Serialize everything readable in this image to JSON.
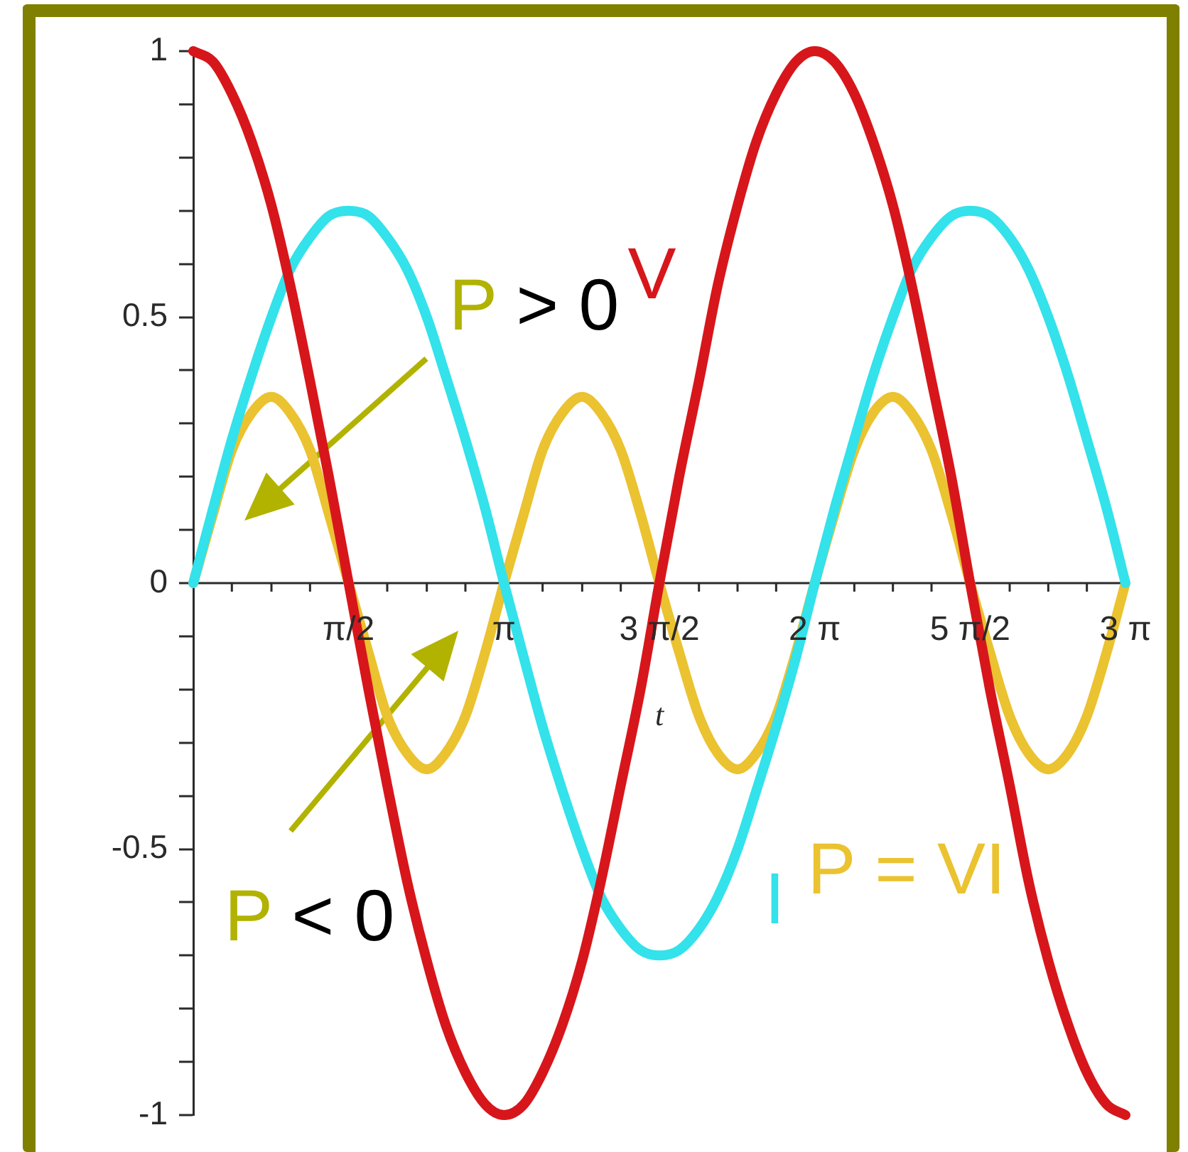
{
  "chart_data": {
    "type": "line",
    "xlabel": "t",
    "x": [
      0,
      0.2,
      0.39,
      0.59,
      0.79,
      0.98,
      1.18,
      1.37,
      1.57,
      1.77,
      1.96,
      2.16,
      2.36,
      2.55,
      2.75,
      2.95,
      3.14,
      3.34,
      3.53,
      3.73,
      3.93,
      4.12,
      4.32,
      4.52,
      4.71,
      4.91,
      5.11,
      5.3,
      5.5,
      5.69,
      5.89,
      6.09,
      6.28,
      6.48,
      6.68,
      6.87,
      7.07,
      7.26,
      7.46,
      7.66,
      7.85,
      8.05,
      8.25,
      8.44,
      8.64,
      8.84,
      9.03,
      9.23,
      9.42
    ],
    "series": [
      {
        "name": "V",
        "color": "#d7161b",
        "values": [
          1,
          0.98,
          0.92,
          0.83,
          0.71,
          0.56,
          0.38,
          0.2,
          0,
          -0.2,
          -0.38,
          -0.56,
          -0.71,
          -0.83,
          -0.92,
          -0.98,
          -1,
          -0.98,
          -0.92,
          -0.83,
          -0.71,
          -0.56,
          -0.38,
          -0.2,
          0,
          0.2,
          0.38,
          0.56,
          0.71,
          0.83,
          0.92,
          0.98,
          1,
          0.98,
          0.92,
          0.83,
          0.71,
          0.56,
          0.38,
          0.2,
          0,
          -0.2,
          -0.38,
          -0.56,
          -0.71,
          -0.83,
          -0.92,
          -0.98,
          -1
        ]
      },
      {
        "name": "I",
        "color": "#33e2ea",
        "values": [
          0,
          0.14,
          0.27,
          0.39,
          0.5,
          0.59,
          0.65,
          0.69,
          0.7,
          0.69,
          0.65,
          0.59,
          0.5,
          0.39,
          0.27,
          0.14,
          0,
          -0.14,
          -0.27,
          -0.39,
          -0.5,
          -0.59,
          -0.65,
          -0.69,
          -0.7,
          -0.69,
          -0.65,
          -0.59,
          -0.5,
          -0.39,
          -0.27,
          -0.14,
          0,
          0.14,
          0.27,
          0.39,
          0.5,
          0.59,
          0.65,
          0.69,
          0.7,
          0.69,
          0.65,
          0.59,
          0.5,
          0.39,
          0.27,
          0.14,
          0
        ]
      },
      {
        "name": "P = VI",
        "color": "#ebc230",
        "values": [
          0,
          0.13,
          0.25,
          0.32,
          0.35,
          0.32,
          0.25,
          0.13,
          0,
          -0.13,
          -0.25,
          -0.32,
          -0.35,
          -0.32,
          -0.25,
          -0.13,
          0,
          0.13,
          0.25,
          0.32,
          0.35,
          0.32,
          0.25,
          0.13,
          0,
          -0.13,
          -0.25,
          -0.32,
          -0.35,
          -0.32,
          -0.25,
          -0.13,
          0,
          0.13,
          0.25,
          0.32,
          0.35,
          0.32,
          0.25,
          0.13,
          0,
          -0.13,
          -0.25,
          -0.32,
          -0.35,
          -0.32,
          -0.25,
          -0.13,
          0
        ]
      }
    ],
    "xlim": [
      0,
      9.42
    ],
    "xticks": [
      {
        "value": 0.39,
        "label": null
      },
      {
        "value": 0.79,
        "label": null
      },
      {
        "value": 1.18,
        "label": null
      },
      {
        "value": 1.57,
        "label": "π/2"
      },
      {
        "value": 1.96,
        "label": null
      },
      {
        "value": 2.36,
        "label": null
      },
      {
        "value": 2.75,
        "label": null
      },
      {
        "value": 3.14,
        "label": "π"
      },
      {
        "value": 3.53,
        "label": null
      },
      {
        "value": 3.93,
        "label": null
      },
      {
        "value": 4.32,
        "label": null
      },
      {
        "value": 4.71,
        "label": "3 π/2"
      },
      {
        "value": 5.11,
        "label": null
      },
      {
        "value": 5.5,
        "label": null
      },
      {
        "value": 5.89,
        "label": null
      },
      {
        "value": 6.28,
        "label": "2 π"
      },
      {
        "value": 6.68,
        "label": null
      },
      {
        "value": 7.07,
        "label": null
      },
      {
        "value": 7.46,
        "label": null
      },
      {
        "value": 7.85,
        "label": "5 π/2"
      },
      {
        "value": 8.25,
        "label": null
      },
      {
        "value": 8.64,
        "label": null
      },
      {
        "value": 9.03,
        "label": null
      },
      {
        "value": 9.42,
        "label": "3 π"
      }
    ],
    "ylim": [
      -1,
      1
    ],
    "yticks": [
      -1,
      {
        "value": -0.9,
        "label": null
      },
      {
        "value": -0.8,
        "label": null
      },
      {
        "value": -0.7,
        "label": null
      },
      {
        "value": -0.6,
        "label": null
      },
      -0.5,
      {
        "value": -0.4,
        "label": null
      },
      {
        "value": -0.3,
        "label": null
      },
      {
        "value": -0.2,
        "label": null
      },
      {
        "value": -0.1,
        "label": null
      },
      0,
      {
        "value": 0.1,
        "label": null
      },
      {
        "value": 0.2,
        "label": null
      },
      {
        "value": 0.3,
        "label": null
      },
      {
        "value": 0.4,
        "label": null
      },
      0.5,
      {
        "value": 0.6,
        "label": null
      },
      {
        "value": 0.7,
        "label": null
      },
      {
        "value": 0.8,
        "label": null
      },
      {
        "value": 0.9,
        "label": null
      },
      1
    ],
    "annotations": [
      "P > 0",
      "P < 0"
    ]
  }
}
